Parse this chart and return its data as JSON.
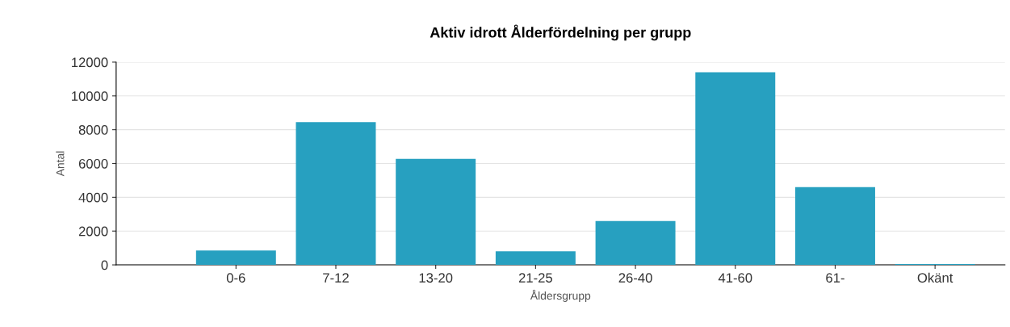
{
  "chart_data": {
    "type": "bar",
    "title": "Aktiv idrott Ålderfördelning per grupp",
    "xlabel": "Åldersgrupp",
    "ylabel": "Antal",
    "categories": [
      "0-6",
      "7-12",
      "13-20",
      "21-25",
      "26-40",
      "41-60",
      "61-",
      "Okänt"
    ],
    "values": [
      850,
      8450,
      6280,
      800,
      2600,
      11400,
      4600,
      50
    ],
    "color": "#27a0c0",
    "ylim": [
      0,
      12000
    ],
    "yticks": [
      0,
      2000,
      4000,
      6000,
      8000,
      10000,
      12000
    ],
    "grid": "y",
    "legend": false
  }
}
